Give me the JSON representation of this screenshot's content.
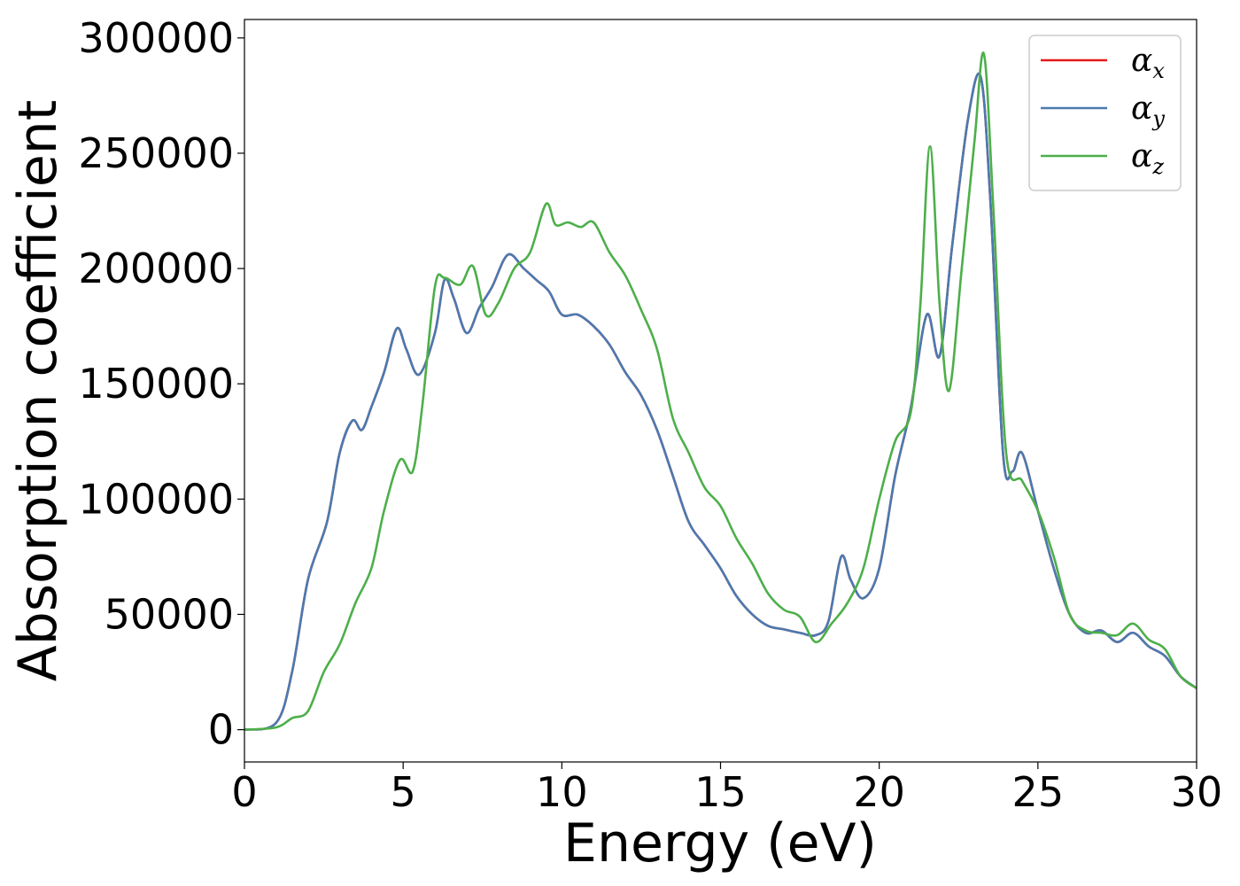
{
  "chart_data": {
    "type": "line",
    "xlabel": "Energy (eV)",
    "ylabel": "Absorption coefficient",
    "xlim": [
      0,
      30
    ],
    "ylim": [
      -14000,
      308000
    ],
    "xticks": [
      0,
      5,
      10,
      15,
      20,
      25,
      30
    ],
    "yticks": [
      0,
      50000,
      100000,
      150000,
      200000,
      250000,
      300000
    ],
    "grid": false,
    "legend_position": "top-right",
    "series": [
      {
        "name": "α",
        "sub": "x",
        "color": "#e41a1c",
        "x": [
          0,
          1,
          1.5,
          2,
          2.6,
          3,
          3.4,
          3.7,
          4,
          4.4,
          4.8,
          5.1,
          5.5,
          6,
          6.3,
          6.6,
          7,
          7.4,
          7.8,
          8.3,
          8.8,
          9.2,
          9.6,
          10,
          10.5,
          11,
          11.5,
          12,
          12.5,
          13,
          13.5,
          14,
          14.5,
          15,
          15.5,
          16,
          16.5,
          17,
          17.5,
          18,
          18.4,
          18.8,
          19.1,
          19.5,
          20,
          20.5,
          21,
          21.5,
          21.9,
          22.3,
          22.8,
          23.2,
          23.5,
          23.9,
          24.2,
          24.5,
          25,
          25.5,
          26,
          26.5,
          27,
          27.5,
          28,
          28.5,
          29,
          29.5,
          30
        ],
        "y": [
          0,
          3000,
          25000,
          65000,
          90000,
          120000,
          134000,
          130000,
          140000,
          155000,
          174000,
          165000,
          154000,
          172000,
          195000,
          187000,
          172000,
          183000,
          192000,
          206000,
          200000,
          195000,
          190000,
          180000,
          180000,
          175000,
          167000,
          155000,
          145000,
          130000,
          110000,
          90000,
          80000,
          70000,
          58000,
          50000,
          45000,
          43500,
          42000,
          41000,
          47000,
          75000,
          65000,
          57000,
          70000,
          110000,
          140000,
          180000,
          162000,
          210000,
          265000,
          283000,
          230000,
          120000,
          112000,
          120000,
          95000,
          70000,
          50000,
          42000,
          43000,
          38000,
          42000,
          36000,
          32000,
          23000,
          18000
        ]
      },
      {
        "name": "α",
        "sub": "y",
        "color": "#4a7ab0",
        "x": [
          0,
          1,
          1.5,
          2,
          2.6,
          3,
          3.4,
          3.7,
          4,
          4.4,
          4.8,
          5.1,
          5.5,
          6,
          6.3,
          6.6,
          7,
          7.4,
          7.8,
          8.3,
          8.8,
          9.2,
          9.6,
          10,
          10.5,
          11,
          11.5,
          12,
          12.5,
          13,
          13.5,
          14,
          14.5,
          15,
          15.5,
          16,
          16.5,
          17,
          17.5,
          18,
          18.4,
          18.8,
          19.1,
          19.5,
          20,
          20.5,
          21,
          21.5,
          21.9,
          22.3,
          22.8,
          23.2,
          23.5,
          23.9,
          24.2,
          24.5,
          25,
          25.5,
          26,
          26.5,
          27,
          27.5,
          28,
          28.5,
          29,
          29.5,
          30
        ],
        "y": [
          0,
          3000,
          25000,
          65000,
          90000,
          120000,
          134000,
          130000,
          140000,
          155000,
          174000,
          165000,
          154000,
          172000,
          195000,
          187000,
          172000,
          183000,
          192000,
          206000,
          200000,
          195000,
          190000,
          180000,
          180000,
          175000,
          167000,
          155000,
          145000,
          130000,
          110000,
          90000,
          80000,
          70000,
          58000,
          50000,
          45000,
          43500,
          42000,
          41000,
          47000,
          75000,
          65000,
          57000,
          70000,
          110000,
          140000,
          180000,
          162000,
          210000,
          265000,
          283000,
          230000,
          120000,
          112000,
          120000,
          95000,
          70000,
          50000,
          42000,
          43000,
          38000,
          42000,
          36000,
          32000,
          23000,
          18000
        ]
      },
      {
        "name": "α",
        "sub": "z",
        "color": "#4daf4a",
        "x": [
          0,
          1,
          1.5,
          2,
          2.5,
          3,
          3.5,
          4,
          4.4,
          4.9,
          5.3,
          5.6,
          6,
          6.3,
          6.8,
          7.2,
          7.6,
          8,
          8.5,
          9,
          9.5,
          9.8,
          10.2,
          10.6,
          11,
          11.5,
          12,
          12.5,
          13,
          13.5,
          14,
          14.5,
          15,
          15.5,
          16,
          16.5,
          17,
          17.5,
          18,
          18.5,
          19,
          19.5,
          20,
          20.5,
          21,
          21.3,
          21.6,
          21.9,
          22.2,
          22.6,
          23,
          23.3,
          23.6,
          24,
          24.5,
          25,
          25.5,
          26,
          26.5,
          27,
          27.5,
          28,
          28.5,
          29,
          29.5,
          30
        ],
        "y": [
          0,
          1000,
          5000,
          8000,
          25000,
          37000,
          55000,
          70000,
          95000,
          117000,
          112000,
          140000,
          192000,
          196000,
          193000,
          201000,
          180000,
          185000,
          200000,
          207000,
          228000,
          219000,
          220000,
          218000,
          220000,
          207000,
          197000,
          182000,
          165000,
          135000,
          120000,
          105000,
          97000,
          83000,
          72000,
          59000,
          52000,
          49000,
          38000,
          46000,
          55000,
          70000,
          100000,
          125000,
          138000,
          185000,
          253000,
          185000,
          147000,
          200000,
          255000,
          293000,
          225000,
          120000,
          108000,
          95000,
          75000,
          50000,
          43000,
          42000,
          41000,
          46000,
          39000,
          35000,
          23000,
          18000
        ]
      }
    ]
  }
}
